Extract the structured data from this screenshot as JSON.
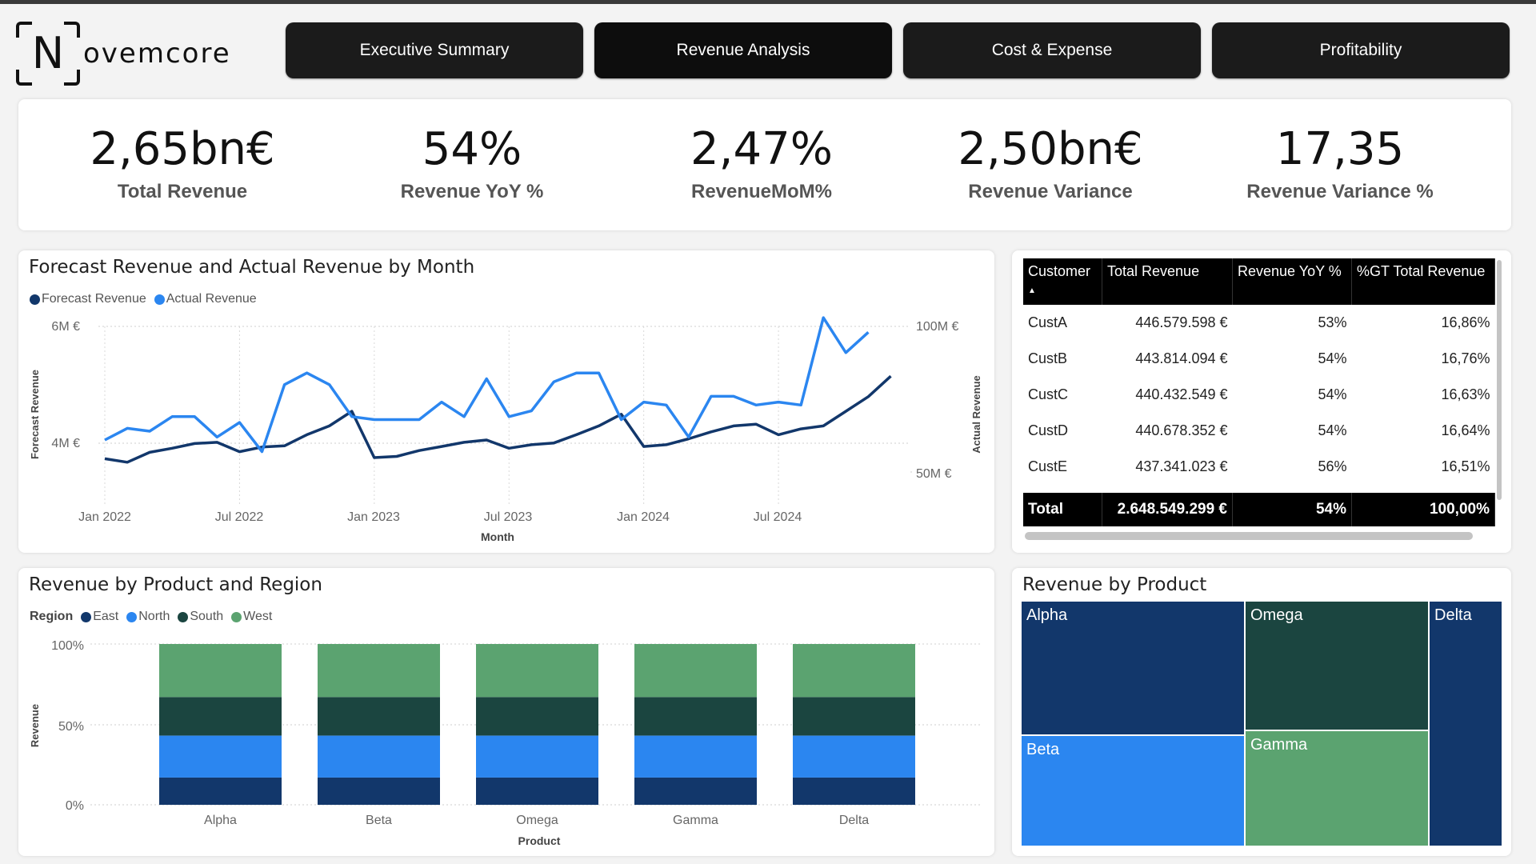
{
  "logo": {
    "mark": "N",
    "text": "ovemcore"
  },
  "nav": {
    "executive_summary": "Executive Summary",
    "revenue_analysis": "Revenue Analysis",
    "cost_expense": "Cost & Expense",
    "profitability": "Profitability"
  },
  "kpis": [
    {
      "value": "2,65bn€",
      "label": "Total Revenue"
    },
    {
      "value": "54%",
      "label": "Revenue YoY %"
    },
    {
      "value": "2,47%",
      "label": "RevenueMoM%"
    },
    {
      "value": "2,50bn€",
      "label": "Revenue Variance"
    },
    {
      "value": "17,35",
      "label": "Revenue Variance %"
    }
  ],
  "line_chart": {
    "title": "Forecast Revenue and Actual Revenue by Month",
    "legend": [
      "Forecast Revenue",
      "Actual Revenue"
    ],
    "y_left_label": "Forecast Revenue",
    "y_right_label": "Actual Revenue",
    "x_label": "Month",
    "y_left_ticks": [
      "6M €",
      "4M €"
    ],
    "y_right_ticks": [
      "100M €",
      "50M €"
    ],
    "x_ticks": [
      "Jan 2022",
      "Jul 2022",
      "Jan 2023",
      "Jul 2023",
      "Jan 2024",
      "Jul 2024"
    ]
  },
  "table": {
    "headers": [
      "Customer",
      "Total Revenue",
      "Revenue YoY %",
      "%GT Total Revenue"
    ],
    "sort_icon": "sort-ascending-icon",
    "rows": [
      [
        "CustA",
        "446.579.598 €",
        "53%",
        "16,86%"
      ],
      [
        "CustB",
        "443.814.094 €",
        "54%",
        "16,76%"
      ],
      [
        "CustC",
        "440.432.549 €",
        "54%",
        "16,63%"
      ],
      [
        "CustD",
        "440.678.352 €",
        "54%",
        "16,64%"
      ],
      [
        "CustE",
        "437.341.023 €",
        "56%",
        "16,51%"
      ]
    ],
    "total": [
      "Total",
      "2.648.549.299 €",
      "54%",
      "100,00%"
    ]
  },
  "bar_chart": {
    "title": "Revenue by Product and Region",
    "legend_title": "Region",
    "legend": [
      "East",
      "North",
      "South",
      "West"
    ],
    "y_label": "Revenue",
    "x_label": "Product",
    "y_ticks": [
      "100%",
      "50%",
      "0%"
    ]
  },
  "treemap": {
    "title": "Revenue by Product",
    "labels": [
      "Alpha",
      "Omega",
      "Delta",
      "Beta",
      "Gamma"
    ]
  },
  "colors": {
    "forecast": "#12376b",
    "actual": "#2b86f0",
    "east": "#12376b",
    "north": "#2b86f0",
    "south": "#1b4540",
    "west": "#5ba370"
  },
  "chart_data": [
    {
      "type": "line",
      "title": "Forecast Revenue and Actual Revenue by Month",
      "xlabel": "Month",
      "x": [
        "2022-01",
        "2022-02",
        "2022-03",
        "2022-04",
        "2022-05",
        "2022-06",
        "2022-07",
        "2022-08",
        "2022-09",
        "2022-10",
        "2022-11",
        "2022-12",
        "2023-01",
        "2023-02",
        "2023-03",
        "2023-04",
        "2023-05",
        "2023-06",
        "2023-07",
        "2023-08",
        "2023-09",
        "2023-10",
        "2023-11",
        "2023-12",
        "2024-01",
        "2024-02",
        "2024-03",
        "2024-04",
        "2024-05",
        "2024-06",
        "2024-07",
        "2024-08",
        "2024-09",
        "2024-10",
        "2024-11",
        "2024-12"
      ],
      "series": [
        {
          "name": "Forecast Revenue",
          "axis": "left",
          "unit": "M €",
          "values": [
            3.74,
            3.68,
            3.85,
            3.92,
            4.0,
            4.02,
            3.86,
            3.94,
            3.96,
            4.15,
            4.3,
            4.55,
            3.76,
            3.78,
            3.88,
            3.95,
            4.02,
            4.06,
            3.92,
            3.98,
            4.01,
            4.15,
            4.3,
            4.5,
            3.95,
            3.98,
            4.08,
            4.2,
            4.3,
            4.33,
            4.15,
            4.25,
            4.3,
            4.55,
            4.8,
            5.15
          ]
        },
        {
          "name": "Actual Revenue",
          "axis": "right",
          "unit": "M €",
          "values": [
            61,
            65,
            64,
            69,
            69,
            62,
            67,
            57,
            80,
            84,
            80,
            69,
            68,
            68,
            68,
            74,
            69,
            82,
            69,
            71,
            81,
            84,
            84,
            68,
            74,
            73,
            62,
            76,
            76,
            73,
            74,
            73,
            103,
            91,
            98,
            null
          ]
        }
      ],
      "ylim_left": [
        3.6,
        6.0
      ],
      "ylim_right": [
        40,
        100
      ]
    },
    {
      "type": "bar",
      "stacked": "percent",
      "title": "Revenue by Product and Region",
      "xlabel": "Product",
      "ylabel": "Revenue",
      "categories": [
        "Alpha",
        "Beta",
        "Omega",
        "Gamma",
        "Delta"
      ],
      "series": [
        {
          "name": "East",
          "values": [
            17,
            17,
            17,
            17,
            17
          ]
        },
        {
          "name": "North",
          "values": [
            26,
            26,
            26,
            26,
            26
          ]
        },
        {
          "name": "South",
          "values": [
            24,
            24,
            24,
            24,
            24
          ]
        },
        {
          "name": "West",
          "values": [
            33,
            33,
            33,
            33,
            33
          ]
        }
      ],
      "ylim": [
        0,
        100
      ]
    },
    {
      "type": "treemap",
      "title": "Revenue by Product",
      "categories": [
        "Alpha",
        "Beta",
        "Omega",
        "Gamma",
        "Delta"
      ],
      "values": [
        20.9,
        20.6,
        20.1,
        19.6,
        18.8
      ]
    }
  ]
}
